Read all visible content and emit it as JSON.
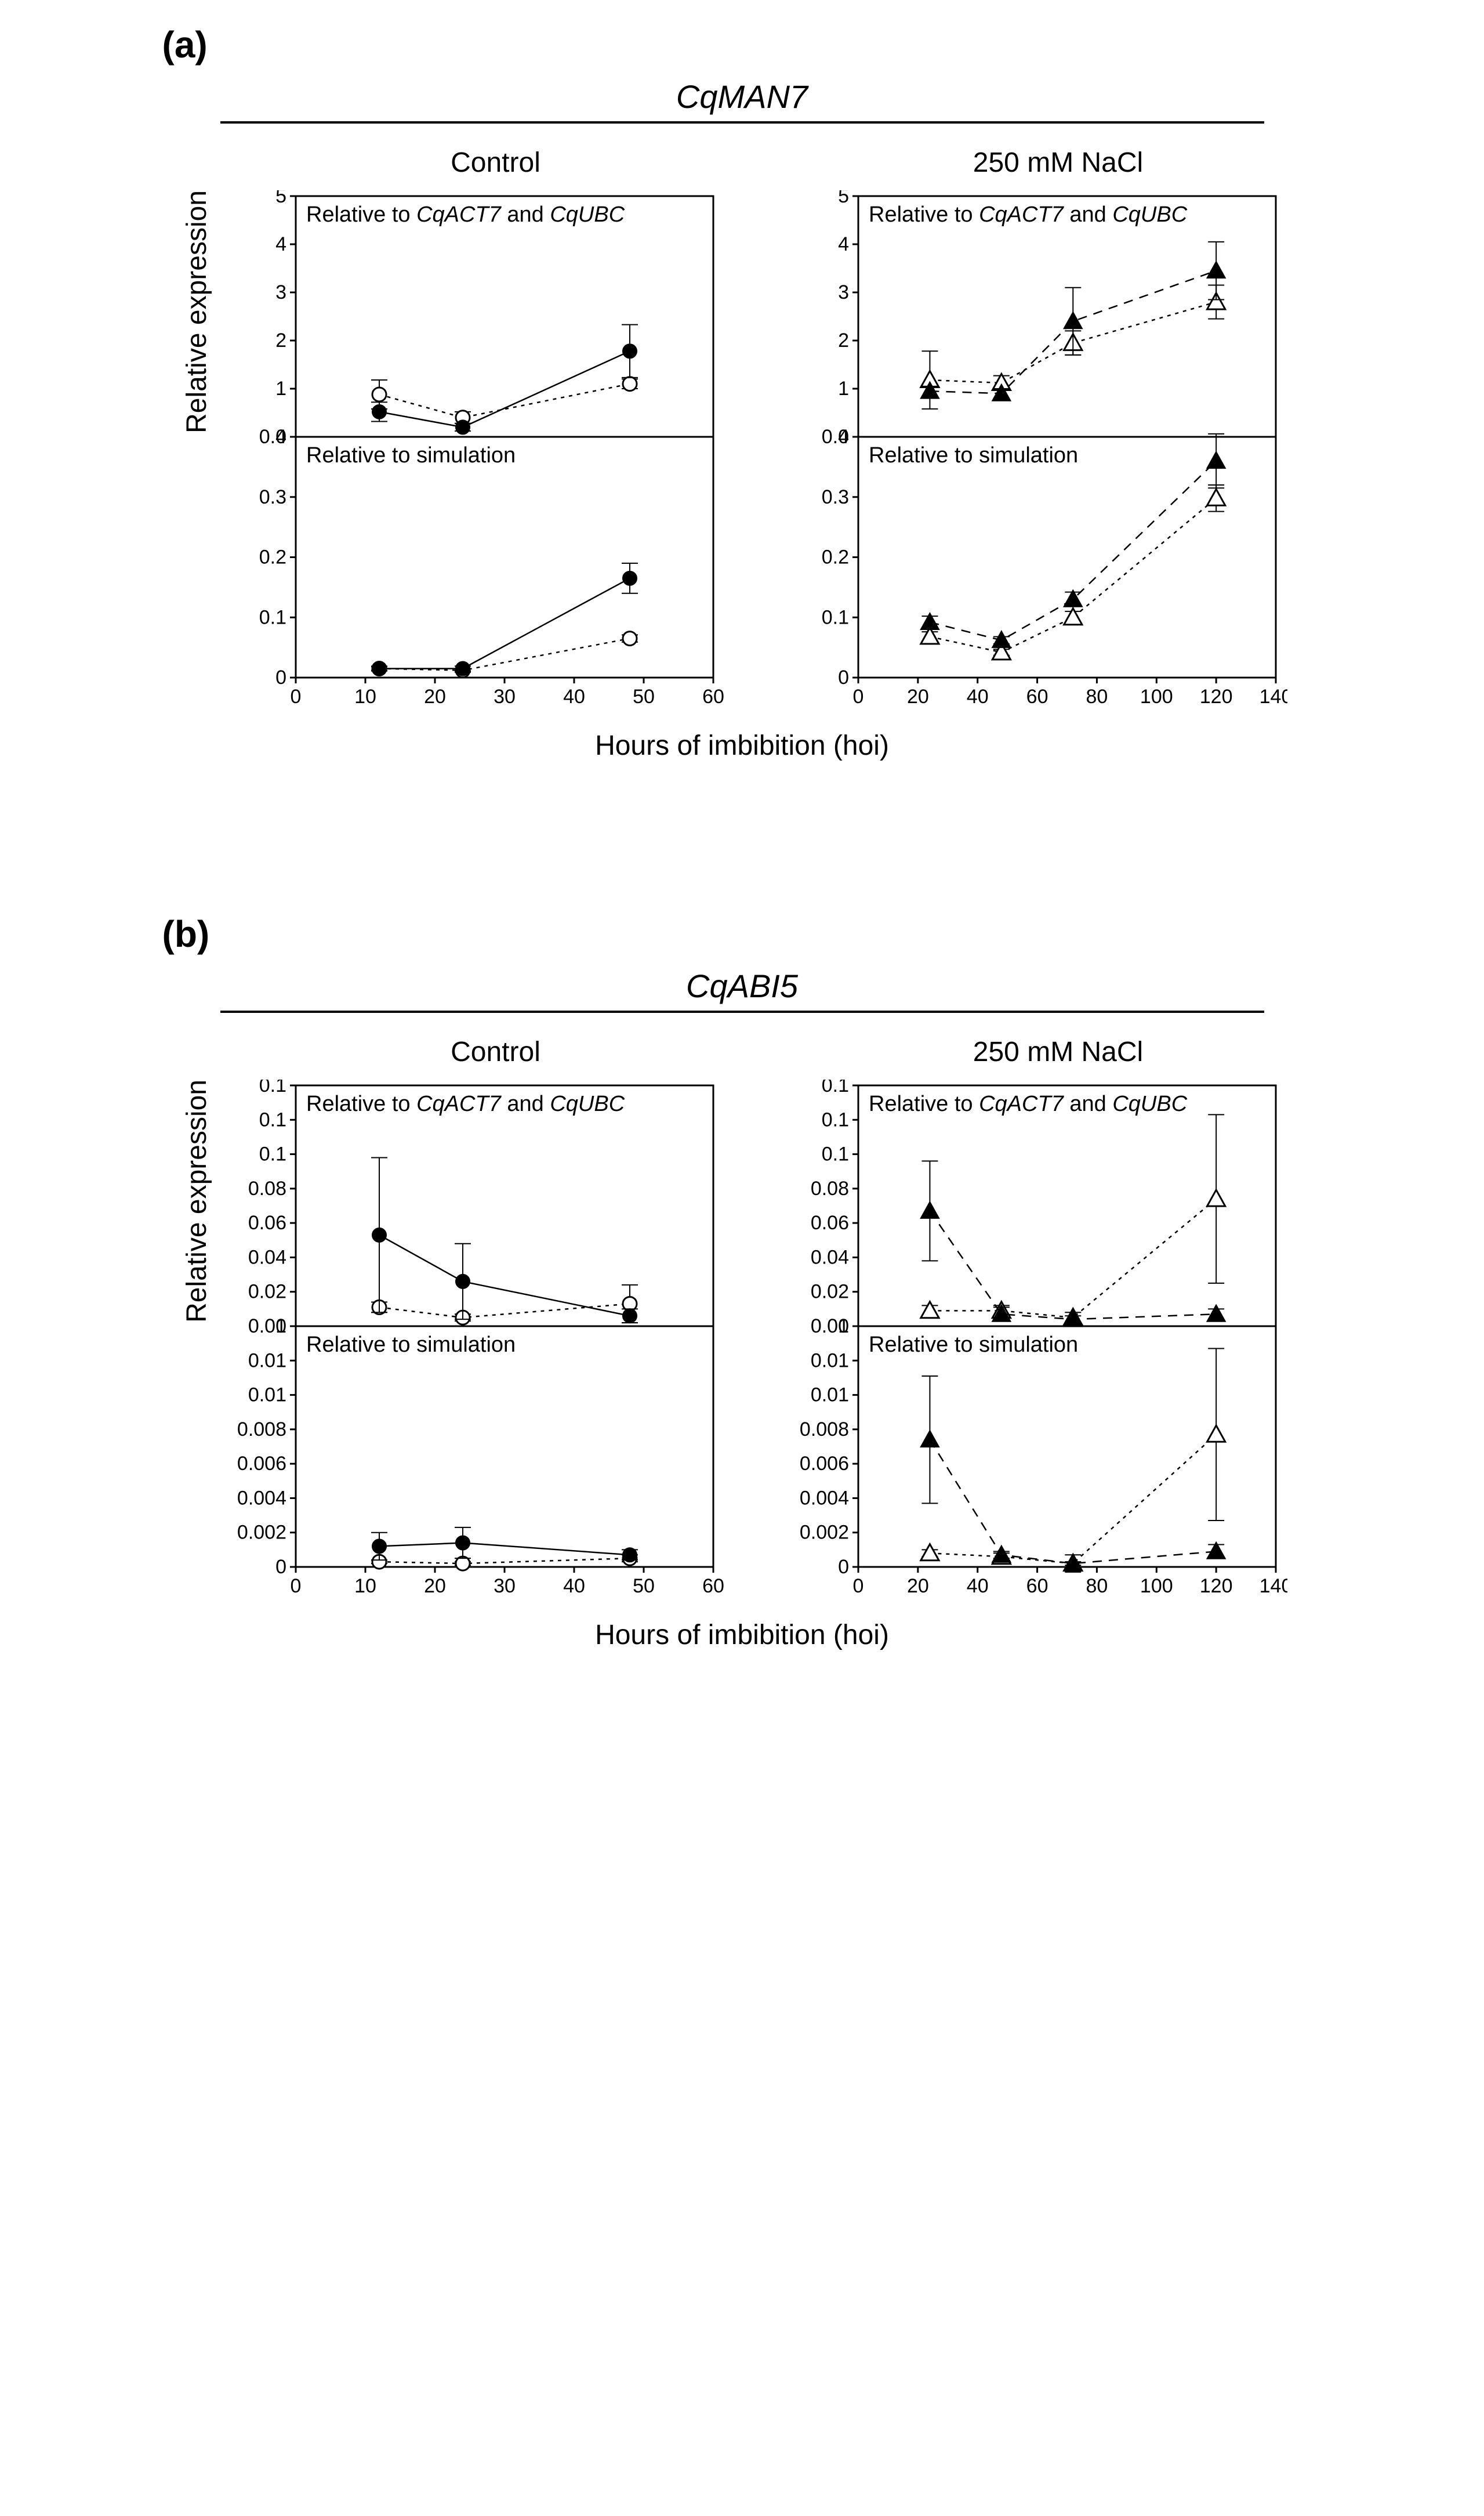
{
  "colors": {
    "background": "#ffffff",
    "axis": "#000000",
    "marker_fill": "#000000",
    "marker_open_stroke": "#000000",
    "marker_open_fill": "#ffffff",
    "line": "#000000",
    "text": "#000000"
  },
  "typography": {
    "section_label_pt": 48,
    "gene_title_pt": 42,
    "cond_title_pt": 36,
    "axis_label_pt": 36,
    "inline_label_pt": 28,
    "tick_label_pt": 26,
    "font_family": "Arial"
  },
  "shared": {
    "xlabel": "Hours of imbibition (hoi)",
    "ylabel": "Relative expression",
    "ref_label_prefix": "Relative to ",
    "ref_label_genes": "CqACT7",
    "ref_label_and": " and ",
    "ref_label_gene2": "CqUBC",
    "sim_label": "Relative to simulation",
    "condition_control": "Control",
    "condition_nacl": "250 mM NaCl",
    "marker_radius": 12,
    "line_width": 2.5,
    "dash_short": "6 8",
    "dash_long": "16 12",
    "error_cap_width": 14
  },
  "panels": {
    "a": {
      "label": "(a)",
      "gene": "CqMAN7",
      "control": {
        "xlim": [
          0,
          60
        ],
        "xticks": [
          0,
          10,
          20,
          30,
          40,
          50,
          60
        ],
        "top": {
          "ylim": [
            0,
            5
          ],
          "yticks": [
            0,
            1,
            2,
            3,
            4,
            5
          ],
          "series_filled": {
            "marker": "circle",
            "dash": "none",
            "points": [
              {
                "x": 12,
                "y": 0.52,
                "err": 0.2
              },
              {
                "x": 24,
                "y": 0.2,
                "err": 0.08
              },
              {
                "x": 48,
                "y": 1.78,
                "err": 0.55
              }
            ]
          },
          "series_open": {
            "marker": "circle",
            "dash": "short",
            "points": [
              {
                "x": 12,
                "y": 0.88,
                "err": 0.3
              },
              {
                "x": 24,
                "y": 0.4,
                "err": 0.12
              },
              {
                "x": 48,
                "y": 1.1,
                "err": 0.1
              }
            ]
          }
        },
        "bottom": {
          "ylim": [
            0,
            0.4
          ],
          "yticks": [
            0.0,
            0.1,
            0.2,
            0.3,
            0.4
          ],
          "series_filled": {
            "marker": "circle",
            "dash": "none",
            "points": [
              {
                "x": 12,
                "y": 0.015,
                "err": 0.004
              },
              {
                "x": 24,
                "y": 0.015,
                "err": 0.004
              },
              {
                "x": 48,
                "y": 0.165,
                "err": 0.025
              }
            ]
          },
          "series_open": {
            "marker": "circle",
            "dash": "short",
            "points": [
              {
                "x": 12,
                "y": 0.015,
                "err": 0.003
              },
              {
                "x": 24,
                "y": 0.012,
                "err": 0.003
              },
              {
                "x": 48,
                "y": 0.065,
                "err": 0.006
              }
            ]
          }
        }
      },
      "nacl": {
        "xlim": [
          0,
          140
        ],
        "xticks": [
          0,
          20,
          40,
          60,
          80,
          100,
          120,
          140
        ],
        "top": {
          "ylim": [
            0,
            5
          ],
          "yticks": [
            0,
            1,
            2,
            3,
            4,
            5
          ],
          "series_filled": {
            "marker": "triangle",
            "dash": "long",
            "points": [
              {
                "x": 24,
                "y": 0.95,
                "err": 0.1
              },
              {
                "x": 48,
                "y": 0.9,
                "err": 0.1
              },
              {
                "x": 72,
                "y": 2.4,
                "err": 0.7
              },
              {
                "x": 120,
                "y": 3.45,
                "err": 0.6
              }
            ]
          },
          "series_open": {
            "marker": "triangle",
            "dash": "short",
            "points": [
              {
                "x": 24,
                "y": 1.18,
                "err": 0.6
              },
              {
                "x": 48,
                "y": 1.12,
                "err": 0.15
              },
              {
                "x": 72,
                "y": 1.95,
                "err": 0.25
              },
              {
                "x": 120,
                "y": 2.8,
                "err": 0.35
              }
            ]
          }
        },
        "bottom": {
          "ylim": [
            0,
            0.4
          ],
          "yticks": [
            0.0,
            0.1,
            0.2,
            0.3,
            0.4
          ],
          "series_filled": {
            "marker": "triangle",
            "dash": "long",
            "points": [
              {
                "x": 24,
                "y": 0.092,
                "err": 0.01
              },
              {
                "x": 48,
                "y": 0.062,
                "err": 0.006
              },
              {
                "x": 72,
                "y": 0.13,
                "err": 0.012
              },
              {
                "x": 120,
                "y": 0.36,
                "err": 0.045
              }
            ]
          },
          "series_open": {
            "marker": "triangle",
            "dash": "short",
            "points": [
              {
                "x": 24,
                "y": 0.068,
                "err": 0.008
              },
              {
                "x": 48,
                "y": 0.042,
                "err": 0.005
              },
              {
                "x": 72,
                "y": 0.1,
                "err": 0.01
              },
              {
                "x": 120,
                "y": 0.298,
                "err": 0.022
              }
            ]
          }
        }
      }
    },
    "b": {
      "label": "(b)",
      "gene": "CqABI5",
      "control": {
        "xlim": [
          0,
          60
        ],
        "xticks": [
          0,
          10,
          20,
          30,
          40,
          50,
          60
        ],
        "top": {
          "ylim": [
            0,
            0.14
          ],
          "yticks": [
            0.0,
            0.02,
            0.04,
            0.06,
            0.08,
            0.1,
            0.12,
            0.14
          ],
          "series_filled": {
            "marker": "circle",
            "dash": "none",
            "points": [
              {
                "x": 12,
                "y": 0.053,
                "err": 0.045
              },
              {
                "x": 24,
                "y": 0.026,
                "err": 0.022
              },
              {
                "x": 48,
                "y": 0.006,
                "err": 0.004
              }
            ]
          },
          "series_open": {
            "marker": "circle",
            "dash": "short",
            "points": [
              {
                "x": 12,
                "y": 0.011,
                "err": 0.003
              },
              {
                "x": 24,
                "y": 0.005,
                "err": 0.002
              },
              {
                "x": 48,
                "y": 0.013,
                "err": 0.011
              }
            ]
          }
        },
        "bottom": {
          "ylim": [
            0,
            0.014
          ],
          "yticks": [
            0.0,
            0.002,
            0.004,
            0.006,
            0.008,
            0.01,
            0.012,
            0.014
          ],
          "series_filled": {
            "marker": "circle",
            "dash": "none",
            "points": [
              {
                "x": 12,
                "y": 0.0012,
                "err": 0.0008
              },
              {
                "x": 24,
                "y": 0.0014,
                "err": 0.0009
              },
              {
                "x": 48,
                "y": 0.0007,
                "err": 0.0003
              }
            ]
          },
          "series_open": {
            "marker": "circle",
            "dash": "short",
            "points": [
              {
                "x": 12,
                "y": 0.0003,
                "err": 0.0001
              },
              {
                "x": 24,
                "y": 0.0002,
                "err": 0.0001
              },
              {
                "x": 48,
                "y": 0.0005,
                "err": 0.0002
              }
            ]
          }
        }
      },
      "nacl": {
        "xlim": [
          0,
          140
        ],
        "xticks": [
          0,
          20,
          40,
          60,
          80,
          100,
          120,
          140
        ],
        "top": {
          "ylim": [
            0,
            0.14
          ],
          "yticks": [
            0.0,
            0.02,
            0.04,
            0.06,
            0.08,
            0.1,
            0.12,
            0.14
          ],
          "series_filled": {
            "marker": "triangle",
            "dash": "long",
            "points": [
              {
                "x": 24,
                "y": 0.067,
                "err": 0.029
              },
              {
                "x": 48,
                "y": 0.007,
                "err": 0.004
              },
              {
                "x": 72,
                "y": 0.004,
                "err": 0.002
              },
              {
                "x": 120,
                "y": 0.007,
                "err": 0.003
              }
            ]
          },
          "series_open": {
            "marker": "triangle",
            "dash": "short",
            "points": [
              {
                "x": 24,
                "y": 0.009,
                "err": 0.003
              },
              {
                "x": 48,
                "y": 0.009,
                "err": 0.003
              },
              {
                "x": 72,
                "y": 0.005,
                "err": 0.003
              },
              {
                "x": 120,
                "y": 0.074,
                "err": 0.049
              }
            ]
          }
        },
        "bottom": {
          "ylim": [
            0,
            0.014
          ],
          "yticks": [
            0.0,
            0.002,
            0.004,
            0.006,
            0.008,
            0.01,
            0.012,
            0.014
          ],
          "series_filled": {
            "marker": "triangle",
            "dash": "long",
            "points": [
              {
                "x": 24,
                "y": 0.0074,
                "err": 0.0037
              },
              {
                "x": 48,
                "y": 0.0007,
                "err": 0.0002
              },
              {
                "x": 72,
                "y": 0.0002,
                "err": 0.0001
              },
              {
                "x": 120,
                "y": 0.0009,
                "err": 0.0004
              }
            ]
          },
          "series_open": {
            "marker": "triangle",
            "dash": "short",
            "points": [
              {
                "x": 24,
                "y": 0.0008,
                "err": 0.0002
              },
              {
                "x": 48,
                "y": 0.0006,
                "err": 0.0002
              },
              {
                "x": 72,
                "y": 0.0002,
                "err": 0.0005
              },
              {
                "x": 120,
                "y": 0.0077,
                "err": 0.005
              }
            ]
          }
        }
      }
    }
  }
}
